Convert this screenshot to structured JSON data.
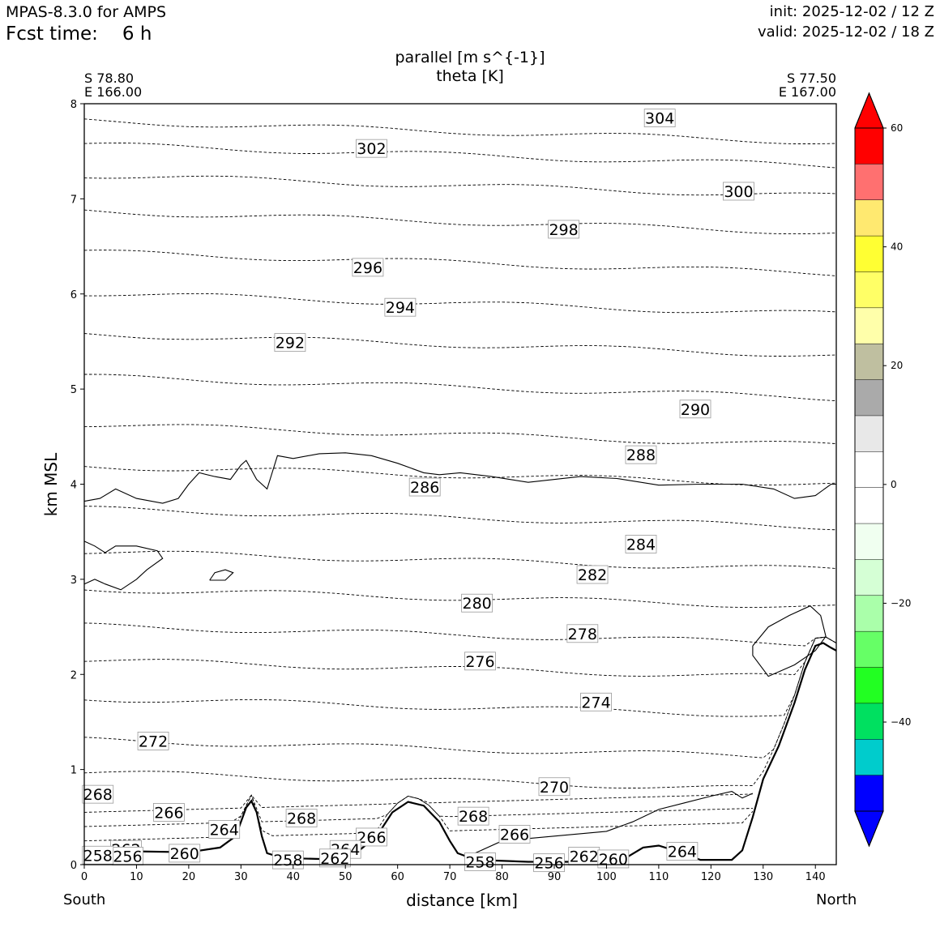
{
  "header": {
    "model": "MPAS-8.3.0 for AMPS",
    "fcst_label": "Fcst time:",
    "fcst_value": "6 h",
    "init": "init: 2025-12-02 / 12 Z",
    "valid": "valid: 2025-12-02 / 18 Z"
  },
  "endpoints": {
    "left_lat": "S 78.80",
    "left_lon": "E 166.00",
    "right_lat": "S 77.50",
    "right_lon": "E 167.00",
    "left_dir": "South",
    "right_dir": "North"
  },
  "chart_data": {
    "type": "cross-section contour",
    "title": "parallel [m s^{-1}]",
    "subtitle": "theta [K]",
    "xlabel": "distance [km]",
    "ylabel": "km MSL",
    "xlim": [
      0,
      144
    ],
    "ylim": [
      0,
      8
    ],
    "xticks": [
      "0",
      "10",
      "20",
      "30",
      "40",
      "50",
      "60",
      "70",
      "80",
      "90",
      "100",
      "110",
      "120",
      "130",
      "140"
    ],
    "yticks": [
      "0",
      "1",
      "2",
      "3",
      "4",
      "5",
      "6",
      "7",
      "8"
    ],
    "theta_labels": [
      {
        "v": "304",
        "x": 110.2,
        "z": 7.85
      },
      {
        "v": "302",
        "x": 55.0,
        "z": 7.53
      },
      {
        "v": "300",
        "x": 125.3,
        "z": 7.08
      },
      {
        "v": "298",
        "x": 91.8,
        "z": 6.68
      },
      {
        "v": "296",
        "x": 54.3,
        "z": 6.28
      },
      {
        "v": "294",
        "x": 60.5,
        "z": 5.86
      },
      {
        "v": "292",
        "x": 39.4,
        "z": 5.49
      },
      {
        "v": "290",
        "x": 117.0,
        "z": 4.79
      },
      {
        "v": "288",
        "x": 106.6,
        "z": 4.31
      },
      {
        "v": "286",
        "x": 65.2,
        "z": 3.97
      },
      {
        "v": "284",
        "x": 106.6,
        "z": 3.37
      },
      {
        "v": "282",
        "x": 97.3,
        "z": 3.05
      },
      {
        "v": "280",
        "x": 75.2,
        "z": 2.75
      },
      {
        "v": "278",
        "x": 95.4,
        "z": 2.43
      },
      {
        "v": "276",
        "x": 75.8,
        "z": 2.14
      },
      {
        "v": "274",
        "x": 98.0,
        "z": 1.71
      },
      {
        "v": "272",
        "x": 13.2,
        "z": 1.3
      },
      {
        "v": "270",
        "x": 90.0,
        "z": 0.82
      },
      {
        "v": "268",
        "x": 2.6,
        "z": 0.74
      },
      {
        "v": "266",
        "x": 16.2,
        "z": 0.55
      },
      {
        "v": "268",
        "x": 41.6,
        "z": 0.49
      },
      {
        "v": "268",
        "x": 74.5,
        "z": 0.51
      },
      {
        "v": "264",
        "x": 26.8,
        "z": 0.37
      },
      {
        "v": "266",
        "x": 55.0,
        "z": 0.29
      },
      {
        "v": "266",
        "x": 82.4,
        "z": 0.32
      },
      {
        "v": "264",
        "x": 50.0,
        "z": 0.16
      },
      {
        "v": "264",
        "x": 114.5,
        "z": 0.14
      },
      {
        "v": "262",
        "x": 8.0,
        "z": 0.16
      },
      {
        "v": "256",
        "x": 8.3,
        "z": 0.09
      },
      {
        "v": "258",
        "x": 2.6,
        "z": 0.1
      },
      {
        "v": "260",
        "x": 19.2,
        "z": 0.12
      },
      {
        "v": "258",
        "x": 39.0,
        "z": 0.05
      },
      {
        "v": "262",
        "x": 48.0,
        "z": 0.07
      },
      {
        "v": "258",
        "x": 75.8,
        "z": 0.03
      },
      {
        "v": "256",
        "x": 89.0,
        "z": 0.02
      },
      {
        "v": "262",
        "x": 95.7,
        "z": 0.09
      },
      {
        "v": "260",
        "x": 101.3,
        "z": 0.06
      }
    ],
    "theta_levels_base": [
      {
        "v": 304,
        "z": 7.82
      },
      {
        "v": 302,
        "z": 7.57
      },
      {
        "v": 300,
        "z": 7.25
      },
      {
        "v": 298,
        "z": 6.87
      },
      {
        "v": 296,
        "z": 6.44
      },
      {
        "v": 294,
        "z": 6.01
      },
      {
        "v": 292,
        "z": 5.58
      },
      {
        "v": 290,
        "z": 5.13
      },
      {
        "v": 288,
        "z": 4.63
      },
      {
        "v": 286,
        "z": 4.19
      },
      {
        "v": 284,
        "z": 3.74
      },
      {
        "v": 282,
        "z": 3.29
      },
      {
        "v": 280,
        "z": 2.9
      },
      {
        "v": 278,
        "z": 2.51
      },
      {
        "v": 276,
        "z": 2.15
      },
      {
        "v": 274,
        "z": 1.75
      },
      {
        "v": 272,
        "z": 1.31
      },
      {
        "v": 270,
        "z": 0.97
      }
    ],
    "colorbar": {
      "ticks": [
        "60",
        "40",
        "20",
        "0",
        "−20",
        "−40"
      ],
      "tick_values": [
        60,
        40,
        20,
        0,
        -20,
        -40
      ],
      "colors": [
        "#ff0000",
        "#ff7070",
        "#ffe970",
        "#ffff33",
        "#ffff66",
        "#ffffaa",
        "#bfbfa0",
        "#aaaaaa",
        "#e8e8e8",
        "#ffffff",
        "#ffffff",
        "#f0fff0",
        "#d5ffd5",
        "#aaffaa",
        "#66ff66",
        "#22ff22",
        "#00e060",
        "#00cccc",
        "#0000ff"
      ],
      "extend_top_color": "#ff0000",
      "extend_bottom_color": "#0000ff"
    }
  }
}
